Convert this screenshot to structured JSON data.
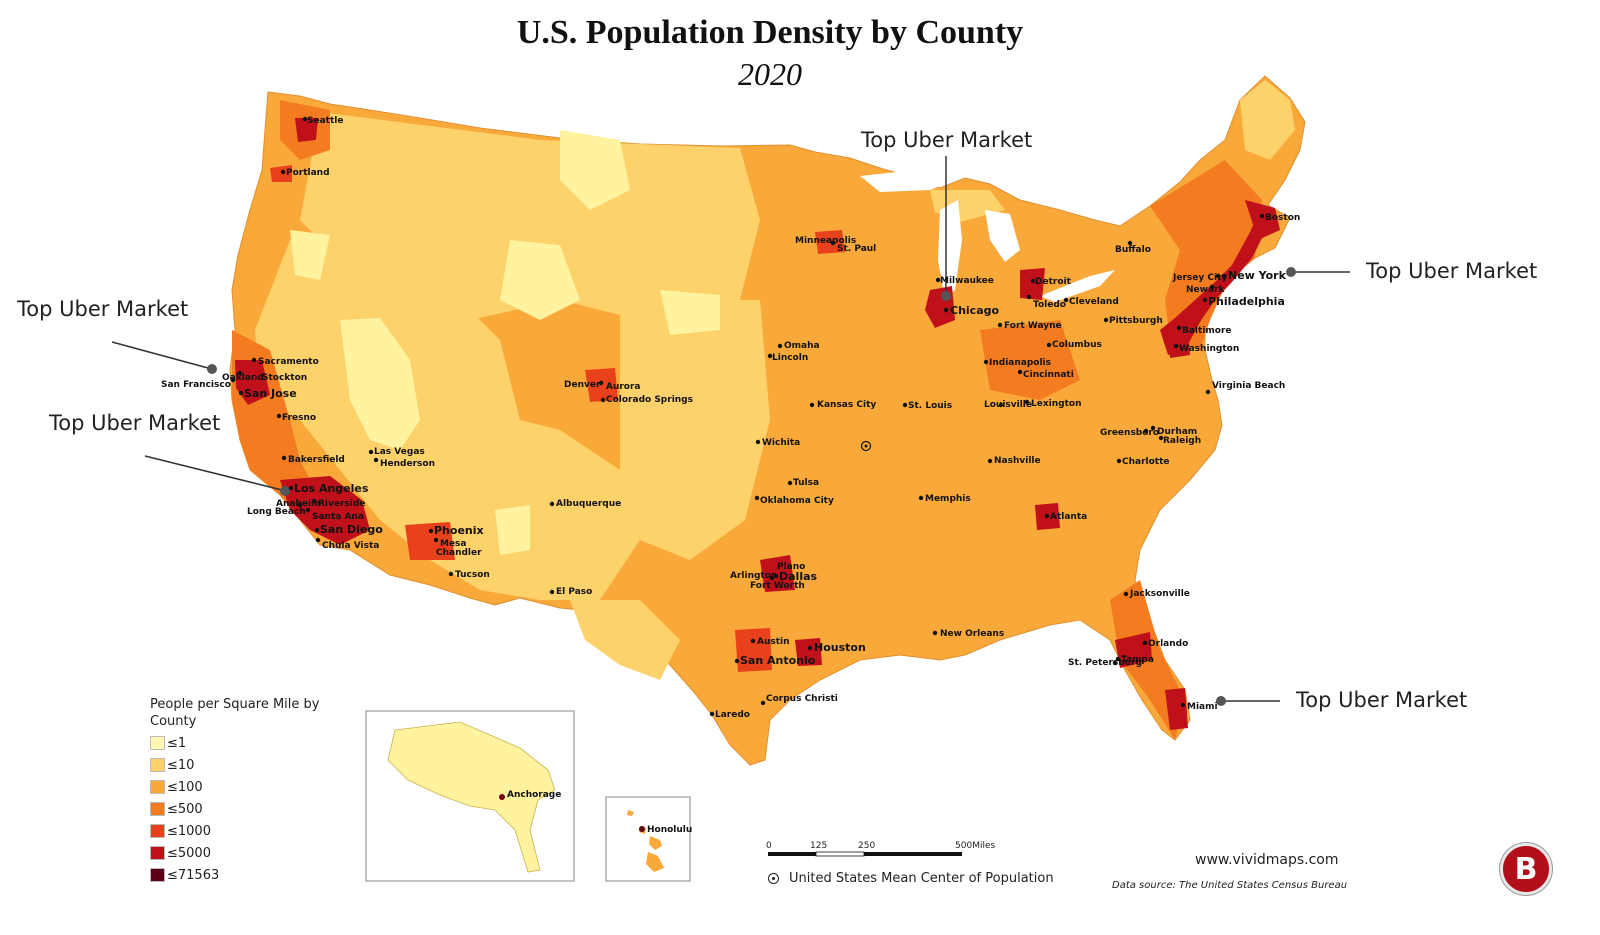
{
  "title": "U.S. Population Density by County",
  "subtitle": "2020",
  "callouts": {
    "chicago": "Top Uber Market",
    "new_york": "Top Uber Market",
    "san_francisco": "Top Uber Market",
    "los_angeles": "Top Uber Market",
    "miami": "Top Uber Market"
  },
  "legend": {
    "title": "People per Square Mile by County",
    "items": [
      {
        "label": "≤1",
        "color": "#fff8b0"
      },
      {
        "label": "≤10",
        "color": "#fdd26b"
      },
      {
        "label": "≤100",
        "color": "#f8a93a"
      },
      {
        "label": "≤500",
        "color": "#f47c20"
      },
      {
        "label": "≤1000",
        "color": "#e8411b"
      },
      {
        "label": "≤5000",
        "color": "#c0101a"
      },
      {
        "label": "≤71563",
        "color": "#5c0016"
      }
    ]
  },
  "cities": {
    "seattle": "Seattle",
    "portland": "Portland",
    "sacramento": "Sacramento",
    "oakland": "Oakland",
    "stockton": "Stockton",
    "san_francisco": "San Francisco",
    "san_jose": "San Jose",
    "fresno": "Fresno",
    "bakersfield": "Bakersfield",
    "las_vegas": "Las Vegas",
    "henderson": "Henderson",
    "los_angeles": "Los Angeles",
    "anaheim": "Anaheim",
    "riverside": "Riverside",
    "long_beach": "Long Beach",
    "santa_ana": "Santa Ana",
    "san_diego": "San Diego",
    "chula_vista": "Chula Vista",
    "phoenix": "Phoenix",
    "mesa": "Mesa",
    "chandler": "Chandler",
    "tucson": "Tucson",
    "albuquerque": "Albuquerque",
    "el_paso": "El Paso",
    "denver": "Denver",
    "aurora": "Aurora",
    "colorado_springs": "Colorado Springs",
    "minneapolis": "Minneapolis",
    "st_paul": "St. Paul",
    "omaha": "Omaha",
    "lincoln": "Lincoln",
    "kansas_city": "Kansas City",
    "st_louis": "St. Louis",
    "wichita": "Wichita",
    "tulsa": "Tulsa",
    "oklahoma_city": "Oklahoma City",
    "plano": "Plano",
    "arlington": "Arlington",
    "dallas": "Dallas",
    "fort_worth": "Fort Worth",
    "austin": "Austin",
    "san_antonio": "San Antonio",
    "houston": "Houston",
    "corpus_christi": "Corpus Christi",
    "laredo": "Laredo",
    "milwaukee": "Milwaukee",
    "chicago": "Chicago",
    "detroit": "Detroit",
    "toledo": "Toledo",
    "cleveland": "Cleveland",
    "fort_wayne": "Fort Wayne",
    "columbus": "Columbus",
    "indianapolis": "Indianapolis",
    "cincinnati": "Cincinnati",
    "louisville": "Louisville",
    "lexington": "Lexington",
    "nashville": "Nashville",
    "memphis": "Memphis",
    "atlanta": "Atlanta",
    "new_orleans": "New Orleans",
    "jacksonville": "Jacksonville",
    "orlando": "Orlando",
    "tampa": "Tampa",
    "st_petersburg": "St. Petersburg",
    "miami": "Miami",
    "charlotte": "Charlotte",
    "greensboro": "Greensboro",
    "durham": "Durham",
    "raleigh": "Raleigh",
    "virginia_beach": "Virginia Beach",
    "washington": "Washington",
    "baltimore": "Baltimore",
    "philadelphia": "Philadelphia",
    "newark": "Newark",
    "jersey_city": "Jersey City",
    "new_york": "New York",
    "pittsburgh": "Pittsburgh",
    "buffalo": "Buffalo",
    "boston": "Boston",
    "anchorage": "Anchorage",
    "honolulu": "Honolulu"
  },
  "scale": {
    "ticks": [
      "0",
      "125",
      "250",
      "500"
    ],
    "unit": "Miles"
  },
  "center_note": "United States Mean Center of Population",
  "website": "www.vividmaps.com",
  "data_source": "Data source: The United States Census Bureau",
  "logo_letter": "B"
}
